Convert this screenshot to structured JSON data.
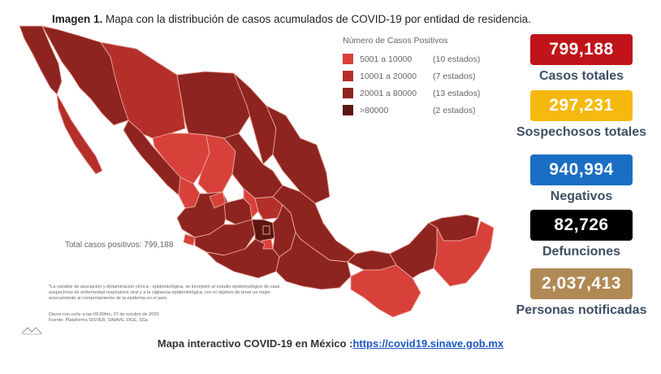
{
  "title": {
    "label": "Imagen 1.",
    "text": "Mapa con la distribución de casos acumulados de COVID-19 por entidad de residencia."
  },
  "legend": {
    "title": "Número de Casos Positivos",
    "items": [
      {
        "range": "5001 a 10000",
        "count": "(10 estados)",
        "color": "#d8413a"
      },
      {
        "range": "10001 a 20000",
        "count": "(7 estados)",
        "color": "#b52f2a"
      },
      {
        "range": "20001 a 80000",
        "count": "(13 estados)",
        "color": "#8e241f"
      },
      {
        "range": ">80000",
        "count": "(2 estados)",
        "color": "#5c1612"
      }
    ]
  },
  "total_positive": "Total casos positivos: 799,188",
  "note": "*La variable de asociación y dictaminación clínica - epidemiológica, se incorporó al estudio epidemiológico de caso sospechoso de enfermedad respiratoria viral y a la vigilancia epidemiológica, con el objetivo de tener un mejor acercamiento al comportamiento de la epidemia en el país.",
  "cutoff": "Cierre con corte a las 09:00hrs, 07 de octubre de 2020",
  "source": "Fuente: Plataforma SISVER, SINAVE, DGE, SSa.",
  "stats": [
    {
      "value": "799,188",
      "label": "Casos totales",
      "color": "#c0141a"
    },
    {
      "value": "297,231",
      "label": "Sospechosos totales",
      "color": "#f5b90d"
    },
    {
      "value": "940,994",
      "label": "Negativos",
      "color": "#1a6fc4"
    },
    {
      "value": "82,726",
      "label": "Defunciones",
      "color": "#000000"
    },
    {
      "value": "2,037,413",
      "label": "Personas notificadas",
      "color": "#b08a55"
    }
  ],
  "footer": {
    "text": "Mapa interactivo COVID-19 en México :",
    "link": "https://covid19.sinave.gob.mx"
  }
}
